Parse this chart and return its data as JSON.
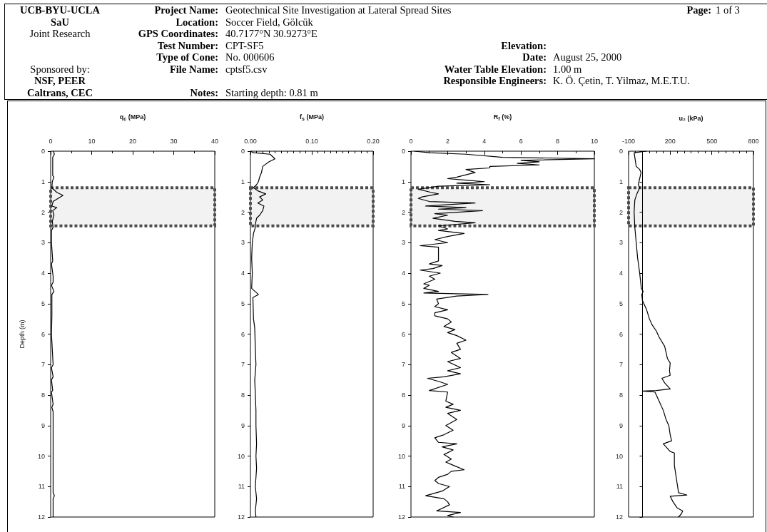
{
  "chart_data": [
    {
      "type": "other",
      "annotations": [
        "UCB-BYU-UCLA",
        "Project Name:",
        "Geotechnical Site Investigation at Lateral Spread Sites",
        "Page:",
        "1 of 3",
        "SaU",
        "Location:",
        "Soccer Field, Gölcük",
        "Joint Research",
        "GPS Coordinates:",
        "40.7177°N  30.9273°E",
        "Test Number:",
        "CPT-SF5",
        "Elevation:",
        "Type of Cone:",
        "No. 000606",
        "Date:",
        "August 25, 2000",
        "Sponsored by:",
        "File Name:",
        "cptsf5.csv",
        "Water Table Elevation:",
        "1.00 m",
        "NSF, PEER",
        "Responsible Engineers:",
        "K. Ö. Çetin, T. Yilmaz, M.E.T.U.",
        "Caltrans, CEC",
        "Notes:",
        "Starting depth: 0.81 m"
      ]
    },
    {
      "type": "line",
      "xlabel": "q$_{c}$ (MPa)",
      "ylabel": "Depth (m)",
      "color": "#000000",
      "x": [
        0.7,
        0.9,
        0.5,
        0.5,
        0.8,
        0.4,
        0.3,
        1.5,
        3.0,
        1.8,
        0.6,
        0.3,
        1.5,
        0.5,
        0.8,
        0.4,
        0.6,
        0.2,
        0.2,
        0.5,
        0.2,
        0.6,
        0.6,
        0.2,
        0.8,
        0.3,
        0.3,
        0.2,
        0.6,
        0.2,
        0.6,
        0.2,
        0.5,
        0.2,
        0.6,
        0.3,
        0.6,
        0.6,
        0.9,
        0.6,
        0.6
      ],
      "values": [
        0,
        0.1,
        0.2,
        0.8,
        0.85,
        1.0,
        1.2,
        1.35,
        1.45,
        1.55,
        1.65,
        1.8,
        1.85,
        1.95,
        2.1,
        2.3,
        2.5,
        2.6,
        3.0,
        3.6,
        3.7,
        4.1,
        4.3,
        4.4,
        4.6,
        4.7,
        5.4,
        6.0,
        7.0,
        7.1,
        7.4,
        7.5,
        7.85,
        7.9,
        8.3,
        8.4,
        8.55,
        11.2,
        11.3,
        11.4,
        12.0
      ],
      "xlim": [
        0,
        40
      ],
      "xticks": [
        0,
        {
          "value": 5,
          "label": null
        },
        10,
        {
          "value": 15,
          "label": null
        },
        20,
        {
          "value": 25,
          "label": null
        },
        30,
        {
          "value": 35,
          "label": null
        },
        40
      ],
      "ylim": [
        12,
        0
      ],
      "yticks": [
        0,
        1,
        2,
        3,
        4,
        5,
        6,
        7,
        8,
        9,
        10,
        11,
        12
      ],
      "bands": [
        {
          "axis": "y",
          "from": 1.2,
          "to": 2.45,
          "color": "#4d4d4d"
        }
      ]
    },
    {
      "type": "line",
      "xlabel": "f$_{s}$ (MPa)",
      "color": "#000000",
      "x": [
        0,
        0.005,
        0.032,
        0.04,
        0.03,
        0.02,
        0.018,
        0.015,
        0.013,
        0.01,
        0.005,
        0.012,
        0.025,
        0.015,
        0.02,
        0.012,
        0.022,
        0.02,
        0.015,
        0.01,
        0.008,
        0.008,
        0.005,
        0.003,
        0.002,
        0.003,
        0.002,
        0.013,
        0.004,
        0.005,
        0.007,
        0.008,
        0.009,
        0.007,
        0.008,
        0.009,
        0.009,
        0.01,
        0.009,
        0.01,
        0.008,
        0.01,
        0.008,
        0.009
      ],
      "values": [
        0,
        0.05,
        0.1,
        0.25,
        0.35,
        0.5,
        0.7,
        0.85,
        1.0,
        1.1,
        1.2,
        1.3,
        1.4,
        1.5,
        1.6,
        1.7,
        1.8,
        1.95,
        2.1,
        2.2,
        2.4,
        2.5,
        2.7,
        3.0,
        3.5,
        4.0,
        4.5,
        4.7,
        4.8,
        5.5,
        5.8,
        6.5,
        7.0,
        7.5,
        8.0,
        8.5,
        9.0,
        9.6,
        10.0,
        10.4,
        11.0,
        11.4,
        11.8,
        12.0
      ],
      "xlim": [
        0,
        0.2
      ],
      "xticks": [
        {
          "value": 0,
          "label": "0.00"
        },
        {
          "value": 0.01,
          "label": null
        },
        {
          "value": 0.02,
          "label": null
        },
        {
          "value": 0.03,
          "label": null
        },
        {
          "value": 0.04,
          "label": null
        },
        {
          "value": 0.05,
          "label": null
        },
        {
          "value": 0.06,
          "label": null
        },
        {
          "value": 0.07,
          "label": null
        },
        {
          "value": 0.08,
          "label": null
        },
        {
          "value": 0.09,
          "label": null
        },
        {
          "value": 0.1,
          "label": "0.10"
        },
        {
          "value": 0.11,
          "label": null
        },
        {
          "value": 0.12,
          "label": null
        },
        {
          "value": 0.13,
          "label": null
        },
        {
          "value": 0.14,
          "label": null
        },
        {
          "value": 0.15,
          "label": null
        },
        {
          "value": 0.16,
          "label": null
        },
        {
          "value": 0.17,
          "label": null
        },
        {
          "value": 0.18,
          "label": null
        },
        {
          "value": 0.19,
          "label": null
        },
        {
          "value": 0.2,
          "label": "0.20"
        }
      ],
      "ylim": [
        12,
        0
      ],
      "yticks": [
        0,
        1,
        2,
        3,
        4,
        5,
        6,
        7,
        8,
        9,
        10,
        11,
        12
      ],
      "bands": [
        {
          "axis": "y",
          "from": 1.2,
          "to": 2.45,
          "color": "#4d4d4d"
        }
      ]
    },
    {
      "type": "line",
      "xlabel": "R$_{f}$ (%)",
      "color": "#000000",
      "x": [
        0.2,
        1.0,
        3.0,
        5.0,
        10,
        6.0,
        7.0,
        5.8,
        7.0,
        4.3,
        4.3,
        3.0,
        3.5,
        2.5,
        2.0,
        3.0,
        4.0,
        2.5,
        4.3,
        1.5,
        0.4,
        1.1,
        1.5,
        0.6,
        0.4,
        1.0,
        3.5,
        0.8,
        3.0,
        1.5,
        3.9,
        1.3,
        2.0,
        1.2,
        2.4,
        3.5,
        1.5,
        2.0,
        1.5,
        2.9,
        2.0,
        1.3,
        2.0,
        0.5,
        1.5,
        1.5,
        1.0,
        1.7,
        1.2,
        0.5,
        1.6,
        1.0,
        1.3,
        0.7,
        1.0,
        0.7,
        1.5,
        0.7,
        4.2,
        2.5,
        1.4,
        1.5,
        1.3,
        2.0,
        1.3,
        1.3,
        2.0,
        2.2,
        1.8,
        2.4,
        2.0,
        2.5,
        3.0,
        2.5,
        2.7,
        2.2,
        2.7,
        2.0,
        2.7,
        2.0,
        2.7,
        1.8,
        0.9,
        1.5,
        2.0,
        1.0,
        2.0,
        1.9,
        2.3,
        1.9,
        2.7,
        2.0,
        2.5,
        1.9,
        2.3,
        1.8,
        1.3,
        1.5,
        2.5,
        1.7,
        2.3,
        1.8,
        2.2,
        1.9,
        2.3,
        2.9,
        2.2,
        2.0,
        1.5,
        1.3,
        1.5,
        2.1,
        1.7,
        0.8,
        1.8,
        2.0,
        2.1,
        1.4,
        2.7,
        2.0,
        2.3
      ],
      "values": [
        0,
        0.05,
        0.1,
        0.2,
        0.25,
        0.3,
        0.35,
        0.4,
        0.45,
        0.5,
        0.55,
        0.6,
        0.7,
        0.85,
        0.9,
        0.95,
        1.0,
        1.05,
        1.1,
        1.15,
        1.25,
        1.35,
        1.4,
        1.5,
        1.55,
        1.65,
        1.7,
        1.8,
        1.85,
        1.9,
        1.95,
        2.05,
        2.1,
        2.2,
        2.3,
        2.35,
        2.45,
        2.55,
        2.6,
        2.7,
        2.8,
        2.9,
        3.0,
        3.1,
        3.15,
        3.6,
        3.7,
        3.75,
        3.85,
        3.9,
        4.0,
        4.1,
        4.2,
        4.35,
        4.4,
        4.5,
        4.6,
        4.65,
        4.7,
        4.75,
        4.85,
        5.0,
        5.1,
        5.2,
        5.3,
        5.4,
        5.5,
        5.6,
        5.75,
        5.85,
        5.95,
        6.05,
        6.2,
        6.3,
        6.5,
        6.6,
        6.8,
        6.9,
        7.1,
        7.2,
        7.3,
        7.4,
        7.45,
        7.55,
        7.65,
        7.85,
        7.9,
        8.2,
        8.3,
        8.4,
        8.5,
        8.6,
        8.8,
        9.0,
        9.15,
        9.3,
        9.4,
        9.55,
        9.6,
        9.7,
        9.8,
        9.95,
        10.1,
        10.2,
        10.3,
        10.45,
        10.5,
        10.6,
        10.7,
        10.8,
        10.9,
        11.0,
        11.15,
        11.3,
        11.4,
        11.5,
        11.6,
        11.8,
        11.85,
        11.95,
        12.0
      ],
      "xlim": [
        0,
        10
      ],
      "xticks": [
        0,
        {
          "value": 1,
          "label": null
        },
        2,
        {
          "value": 3,
          "label": null
        },
        4,
        {
          "value": 5,
          "label": null
        },
        6,
        {
          "value": 7,
          "label": null
        },
        8,
        {
          "value": 9,
          "label": null
        },
        10
      ],
      "ylim": [
        12,
        0
      ],
      "yticks": [
        0,
        1,
        2,
        3,
        4,
        5,
        6,
        7,
        8,
        9,
        10,
        11,
        12
      ],
      "bands": [
        {
          "axis": "y",
          "from": 1.2,
          "to": 2.45,
          "color": "#4d4d4d"
        }
      ]
    },
    {
      "type": "line",
      "xlabel": "u₂ (kPa)",
      "color": "#000000",
      "x": [
        30,
        -60,
        -45,
        -20,
        -10,
        -20,
        -30,
        -20,
        -40,
        -55,
        -60,
        -55,
        -45,
        -35,
        -20,
        -8,
        5,
        -5,
        0,
        30,
        50,
        70,
        100,
        120,
        160,
        180,
        200,
        195,
        200,
        140,
        160,
        200,
        100,
        0,
        90,
        120,
        150,
        170,
        190,
        200,
        210,
        150,
        170,
        200,
        230,
        230,
        240,
        250,
        260,
        320,
        200,
        220,
        250,
        290,
        280,
        260
      ],
      "values": [
        0,
        0.05,
        0.5,
        0.6,
        0.7,
        0.9,
        1.1,
        1.2,
        1.4,
        1.6,
        2.0,
        2.5,
        3.0,
        3.5,
        4.0,
        4.5,
        4.6,
        4.7,
        4.9,
        5.2,
        5.5,
        5.7,
        5.9,
        6.1,
        6.4,
        6.8,
        6.95,
        7.2,
        7.35,
        7.45,
        7.6,
        7.8,
        7.85,
        7.87,
        7.9,
        8.2,
        8.5,
        8.8,
        9.0,
        9.3,
        9.5,
        9.6,
        9.7,
        9.85,
        9.9,
        10.3,
        10.6,
        10.9,
        11.2,
        11.28,
        11.32,
        11.5,
        11.7,
        11.8,
        11.9,
        12.0
      ],
      "xlim": [
        -100,
        800
      ],
      "xticks": [
        -100,
        {
          "value": -50,
          "label": null
        },
        {
          "value": 0,
          "label": null
        },
        {
          "value": 50,
          "label": null
        },
        {
          "value": 100,
          "label": null
        },
        {
          "value": 150,
          "label": null
        },
        200,
        {
          "value": 250,
          "label": null
        },
        {
          "value": 300,
          "label": null
        },
        {
          "value": 350,
          "label": null
        },
        {
          "value": 400,
          "label": null
        },
        {
          "value": 450,
          "label": null
        },
        500,
        {
          "value": 550,
          "label": null
        },
        {
          "value": 600,
          "label": null
        },
        {
          "value": 650,
          "label": null
        },
        {
          "value": 700,
          "label": null
        },
        {
          "value": 750,
          "label": null
        },
        800
      ],
      "ylim": [
        12,
        0
      ],
      "yticks": [
        0,
        1,
        2,
        3,
        4,
        5,
        6,
        7,
        8,
        9,
        10,
        11,
        12
      ],
      "ref_lines": [
        {
          "axis": "x",
          "value": 0,
          "color": "#000000"
        }
      ],
      "bands": [
        {
          "axis": "y",
          "from": 1.2,
          "to": 2.45,
          "color": "#4d4d4d"
        }
      ]
    }
  ]
}
